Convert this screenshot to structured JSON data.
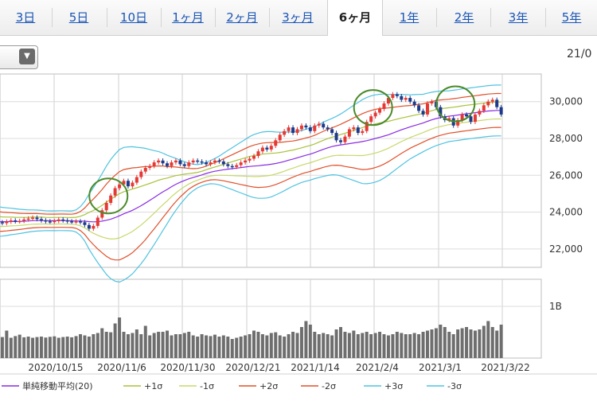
{
  "tabs": [
    {
      "label": "3日",
      "active": false
    },
    {
      "label": "5日",
      "active": false
    },
    {
      "label": "10日",
      "active": false
    },
    {
      "label": "1ヶ月",
      "active": false
    },
    {
      "label": "2ヶ月",
      "active": false
    },
    {
      "label": "3ヶ月",
      "active": false
    },
    {
      "label": "6ヶ月",
      "active": true
    },
    {
      "label": "1年",
      "active": false
    },
    {
      "label": "2年",
      "active": false
    },
    {
      "label": "3年",
      "active": false
    },
    {
      "label": "5年",
      "active": false
    }
  ],
  "date_stamp": "21/0",
  "colors": {
    "sma": "#8a2be2",
    "sigma1": "#a8c23a",
    "sigma2": "#e0502a",
    "sigma3": "#4fc3e0",
    "up_candle": "#e53935",
    "down_candle": "#1e3a8a",
    "volume": "#6e6e6e",
    "highlight": "#4a8a2a"
  },
  "chart_data": {
    "type": "line",
    "price_axis": {
      "ylim": [
        21000,
        31500
      ],
      "ticks": [
        "22,000",
        "24,000",
        "26,000",
        "28,000",
        "30,000"
      ]
    },
    "volume_axis": {
      "tick": "1B"
    },
    "x_tick_labels": [
      "2020/10/15",
      "2020/11/6",
      "2020/11/30",
      "2020/12/21",
      "2021/1/14",
      "2021/2/4",
      "2021/3/1",
      "2021/3/22"
    ],
    "close": [
      23500,
      23450,
      23400,
      23480,
      23550,
      23500,
      23520,
      23600,
      23650,
      23700,
      23620,
      23550,
      23500,
      23480,
      23520,
      23600,
      23550,
      23500,
      23480,
      23500,
      23450,
      23300,
      23100,
      23250,
      23700,
      24100,
      24500,
      24900,
      25300,
      25500,
      25700,
      25400,
      25600,
      25900,
      26200,
      26400,
      26500,
      26700,
      26800,
      26650,
      26500,
      26700,
      26800,
      26600,
      26500,
      26700,
      26800,
      26750,
      26700,
      26600,
      26700,
      26800,
      26750,
      26600,
      26500,
      26450,
      26550,
      26700,
      26800,
      26900,
      27050,
      27300,
      27500,
      27400,
      27600,
      27900,
      28200,
      28400,
      28600,
      28300,
      28500,
      28700,
      28600,
      28400,
      28700,
      28800,
      28600,
      28500,
      28300,
      27900,
      27800,
      28100,
      28500,
      28600,
      28300,
      28400,
      28900,
      29200,
      29400,
      29600,
      29900,
      30200,
      30400,
      30300,
      30100,
      30200,
      30000,
      29800,
      29500,
      29300,
      29900,
      30000,
      29700,
      29200,
      29000,
      29100,
      28700,
      29000,
      29300,
      29200,
      28900,
      29300,
      29500,
      29800,
      30000,
      30100,
      29700,
      29300
    ],
    "sma20": [
      23500,
      23490,
      23480,
      23480,
      23490,
      23490,
      23495,
      23505,
      23520,
      23535,
      23540,
      23540,
      23535,
      23530,
      23530,
      23535,
      23535,
      23530,
      23525,
      23520,
      23515,
      23505,
      23485,
      23470,
      23480,
      23510,
      23560,
      23620,
      23700,
      23800,
      23910,
      24000,
      24100,
      24220,
      24350,
      24490,
      24640,
      24790,
      24950,
      25100,
      25230,
      25380,
      25510,
      25620,
      25720,
      25810,
      25880,
      25950,
      26020,
      26100,
      26170,
      26220,
      26260,
      26300,
      26330,
      26360,
      26390,
      26420,
      26450,
      26480,
      26500,
      26520,
      26550,
      26570,
      26600,
      26640,
      26690,
      26750,
      26820,
      26880,
      26950,
      27020,
      27090,
      27150,
      27230,
      27320,
      27410,
      27490,
      27560,
      27610,
      27650,
      27680,
      27720,
      27760,
      27790,
      27830,
      27880,
      27940,
      28000,
      28060,
      28130,
      28200,
      28290,
      28380,
      28470,
      28550,
      28630,
      28700,
      28770,
      28840,
      28930,
      29010,
      29080,
      29130,
      29170,
      29210,
      29240,
      29270,
      29310,
      29340,
      29370,
      29400,
      29430,
      29460,
      29490,
      29510,
      29520,
      29520
    ],
    "sigma": [
      280,
      270,
      260,
      250,
      240,
      230,
      220,
      210,
      200,
      195,
      190,
      185,
      180,
      180,
      180,
      180,
      180,
      180,
      180,
      200,
      260,
      360,
      500,
      620,
      740,
      860,
      980,
      1080,
      1150,
      1200,
      1200,
      1180,
      1150,
      1100,
      1050,
      990,
      920,
      850,
      780,
      700,
      620,
      540,
      470,
      400,
      340,
      280,
      240,
      210,
      200,
      200,
      210,
      230,
      260,
      300,
      340,
      380,
      420,
      460,
      500,
      540,
      570,
      590,
      600,
      600,
      590,
      570,
      550,
      530,
      510,
      490,
      480,
      470,
      470,
      470,
      470,
      480,
      490,
      500,
      510,
      530,
      560,
      600,
      640,
      680,
      720,
      760,
      780,
      790,
      790,
      780,
      760,
      730,
      700,
      670,
      640,
      610,
      580,
      560,
      540,
      520,
      510,
      500,
      490,
      480,
      470,
      460,
      460,
      460,
      460,
      460,
      460,
      460,
      460,
      460,
      460,
      460,
      460,
      460
    ],
    "volume_rel": [
      0.95,
      0.9,
      0.88,
      1.15,
      0.85,
      0.92,
      0.98,
      0.87,
      0.9,
      0.85,
      0.88,
      0.9,
      0.86,
      0.89,
      0.91,
      0.85,
      0.88,
      0.9,
      0.87,
      0.92,
      1.0,
      0.95,
      0.9,
      1.0,
      1.05,
      1.25,
      1.1,
      1.08,
      1.45,
      1.7,
      1.1,
      1.0,
      1.05,
      1.2,
      1.0,
      1.35,
      0.95,
      1.05,
      1.1,
      1.1,
      1.15,
      0.95,
      1.0,
      1.0,
      1.05,
      1.1,
      0.95,
      0.9,
      1.0,
      0.95,
      0.92,
      0.98,
      0.9,
      0.95,
      0.9,
      0.8,
      0.85,
      0.9,
      0.95,
      1.0,
      1.15,
      1.1,
      1.0,
      0.95,
      1.05,
      1.08,
      0.95,
      0.9,
      1.0,
      1.1,
      1.05,
      1.3,
      1.55,
      1.4,
      1.1,
      1.0,
      1.05,
      1.0,
      0.95,
      1.2,
      1.3,
      1.1,
      1.05,
      1.15,
      1.0,
      1.05,
      1.1,
      1.0,
      1.05,
      1.1,
      1.0,
      0.95,
      1.0,
      1.1,
      1.05,
      1.0,
      1.0,
      1.05,
      1.0,
      1.1,
      1.15,
      1.2,
      1.25,
      1.4,
      1.3,
      1.1,
      1.0,
      1.2,
      1.25,
      1.3,
      1.2,
      1.15,
      1.2,
      1.35,
      1.55,
      1.3,
      1.15,
      1.4
    ],
    "legend": [
      {
        "label": "単純移動平均(20)",
        "color": "#8a2be2"
      },
      {
        "label": "+1σ",
        "color": "#a8c23a"
      },
      {
        "label": "-1σ",
        "color": "#c8d86a"
      },
      {
        "label": "+2σ",
        "color": "#e0502a"
      },
      {
        "label": "-2σ",
        "color": "#e0502a"
      },
      {
        "label": "+3σ",
        "color": "#4fc3e0"
      },
      {
        "label": "-3σ",
        "color": "#4fc3e0"
      }
    ],
    "highlights": [
      25,
      86,
      105
    ],
    "grid": true
  }
}
